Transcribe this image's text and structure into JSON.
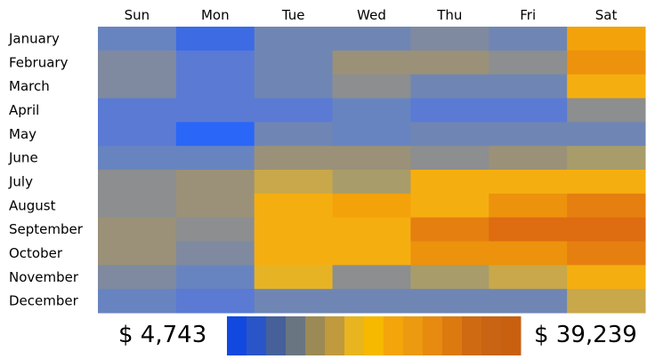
{
  "chart_data": {
    "type": "heatmap",
    "title": "",
    "columns": [
      "Sun",
      "Mon",
      "Tue",
      "Wed",
      "Thu",
      "Fri",
      "Sat"
    ],
    "rows": [
      "January",
      "February",
      "March",
      "April",
      "May",
      "June",
      "July",
      "August",
      "September",
      "October",
      "November",
      "December"
    ],
    "values": [
      [
        3,
        1,
        4,
        4,
        5,
        4,
        12
      ],
      [
        5,
        2,
        4,
        7,
        7,
        6,
        13
      ],
      [
        5,
        2,
        4,
        6,
        4,
        4,
        11
      ],
      [
        2,
        2,
        2,
        3,
        2,
        2,
        6
      ],
      [
        2,
        0,
        4,
        3,
        4,
        4,
        4
      ],
      [
        3,
        3,
        7,
        7,
        6,
        7,
        8
      ],
      [
        6,
        7,
        9,
        8,
        11,
        11,
        11
      ],
      [
        6,
        7,
        11,
        12,
        11,
        13,
        14
      ],
      [
        7,
        6,
        11,
        11,
        14,
        15,
        15
      ],
      [
        7,
        5,
        11,
        11,
        13,
        13,
        14
      ],
      [
        5,
        3,
        10,
        6,
        8,
        9,
        11
      ],
      [
        3,
        2,
        4,
        4,
        4,
        4,
        9
      ]
    ],
    "value_scale_note": "bin index 0 (lowest) to 15 (highest)",
    "legend": {
      "min_label": "$ 4,743",
      "max_label": "$ 39,239",
      "colors": [
        "#1148e0",
        "#2a55c8",
        "#46609a",
        "#6a7582",
        "#9b8a55",
        "#c09a3c",
        "#e8b520",
        "#f7b800",
        "#f3a50a",
        "#ec9a10",
        "#e68a10",
        "#dc7a10",
        "#d06a12",
        "#c86414",
        "#c86010"
      ]
    },
    "palette": [
      "#2a66f8",
      "#3c6be4",
      "#5a7ad4",
      "#6884c0",
      "#6f86b4",
      "#7f8aa0",
      "#8c8e8f",
      "#9a9178",
      "#a89c6a",
      "#c8a84a",
      "#e6b325",
      "#f5ae10",
      "#f3a20a",
      "#ec920c",
      "#e57f10",
      "#de6c10"
    ]
  }
}
